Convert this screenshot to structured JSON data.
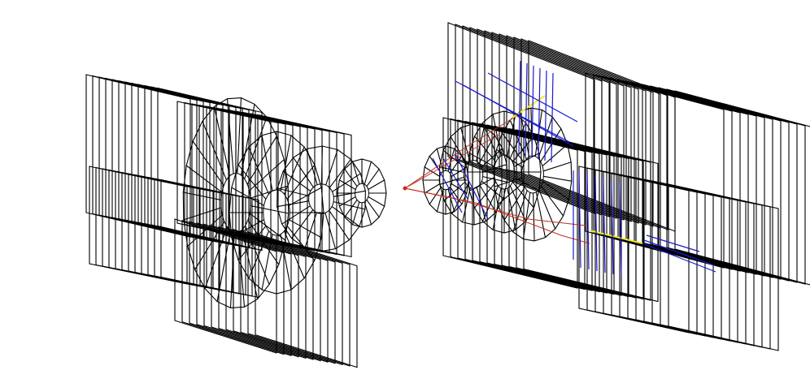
{
  "colors": {
    "background": "#ffffff",
    "detector": "#000000",
    "track_primary": "#1a1acc",
    "track_highlight": "#f0ea20",
    "track_secondary": "#c03020",
    "vertex": "#c03020"
  },
  "scene": {
    "left_arm": {
      "chamber_planes": 12,
      "wheel_discs": 4
    },
    "right_arm": {
      "chamber_planes": 12,
      "wheel_discs": 5
    },
    "tracks": {
      "blue_count": 22,
      "yellow_count": 2,
      "red_count": 4
    }
  }
}
